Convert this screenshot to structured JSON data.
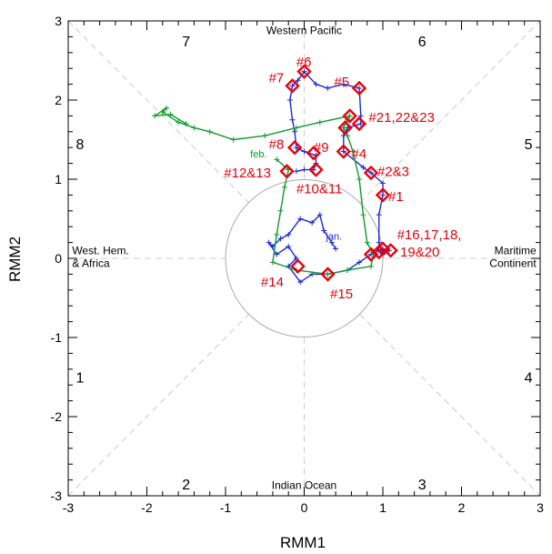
{
  "chart_data": {
    "type": "line",
    "title": "",
    "xlabel": "RMM1",
    "ylabel": "RMM2",
    "xlim": [
      -3,
      3
    ],
    "ylim": [
      -3,
      3
    ],
    "x_ticks": [
      "-3",
      "-2",
      "-1",
      "0",
      "1",
      "2",
      "3"
    ],
    "y_ticks": [
      "-3",
      "-2",
      "-1",
      "0",
      "1",
      "2",
      "3"
    ],
    "grid": false,
    "unit_circle_radius": 1,
    "colors": {
      "jan": "#1f2ad6",
      "feb": "#119a2e",
      "markers": "#e8000b",
      "guides": "#cccccc"
    },
    "phase_numbers": [
      {
        "label": "1",
        "x": -2.85,
        "y": -1.5
      },
      {
        "label": "2",
        "x": -1.5,
        "y": -2.85
      },
      {
        "label": "3",
        "x": 1.5,
        "y": -2.85
      },
      {
        "label": "4",
        "x": 2.85,
        "y": -1.5
      },
      {
        "label": "5",
        "x": 2.85,
        "y": 1.45
      },
      {
        "label": "6",
        "x": 1.5,
        "y": 2.75
      },
      {
        "label": "7",
        "x": -1.5,
        "y": 2.75
      },
      {
        "label": "8",
        "x": -2.85,
        "y": 1.45
      }
    ],
    "regions": [
      {
        "lines": [
          "Western Pacific"
        ],
        "x": 0,
        "y": 2.88,
        "anchor": "middle"
      },
      {
        "lines": [
          "Indian Ocean"
        ],
        "x": 0,
        "y": -2.87,
        "anchor": "middle"
      },
      {
        "lines": [
          "West. Hem.",
          "& Africa"
        ],
        "x": -2.95,
        "y": 0.1,
        "anchor": "start"
      },
      {
        "lines": [
          "Maritime",
          "Continent"
        ],
        "x": 2.95,
        "y": 0.1,
        "anchor": "end"
      }
    ],
    "series": [
      {
        "name": "jan",
        "points": [
          [
            0.4,
            0.12
          ],
          [
            0.35,
            0.2
          ],
          [
            0.25,
            0.35
          ],
          [
            0.2,
            0.55
          ],
          [
            0.1,
            0.45
          ],
          [
            -0.05,
            0.5
          ],
          [
            -0.2,
            0.3
          ],
          [
            -0.3,
            0.25
          ],
          [
            -0.4,
            0.15
          ],
          [
            -0.45,
            0.2
          ],
          [
            -0.35,
            0.05
          ],
          [
            -0.2,
            0.15
          ],
          [
            -0.1,
            0.0
          ],
          [
            -0.2,
            -0.1
          ],
          [
            -0.05,
            -0.3
          ],
          [
            0.1,
            -0.2
          ],
          [
            0.3,
            -0.2
          ],
          [
            0.55,
            -0.15
          ],
          [
            0.7,
            -0.05
          ],
          [
            0.85,
            0.05
          ],
          [
            0.95,
            0.1
          ],
          [
            1.0,
            0.12
          ],
          [
            1.08,
            0.1
          ],
          [
            1.0,
            0.05
          ],
          [
            0.95,
            0.2
          ],
          [
            0.95,
            0.55
          ],
          [
            1.0,
            0.8
          ],
          [
            1.0,
            0.95
          ],
          [
            0.85,
            1.08
          ],
          [
            0.75,
            1.15
          ],
          [
            0.5,
            1.35
          ],
          [
            0.5,
            1.55
          ],
          [
            0.55,
            1.65
          ],
          [
            0.72,
            1.7
          ],
          [
            0.72,
            1.8
          ],
          [
            0.7,
            2.15
          ],
          [
            0.5,
            2.2
          ],
          [
            0.3,
            2.15
          ],
          [
            0.15,
            2.2
          ],
          [
            0.0,
            2.36
          ],
          [
            -0.08,
            2.25
          ],
          [
            -0.15,
            2.18
          ],
          [
            -0.18,
            2.0
          ],
          [
            -0.15,
            1.75
          ],
          [
            -0.12,
            1.6
          ],
          [
            -0.1,
            1.4
          ],
          [
            0.0,
            1.35
          ],
          [
            0.15,
            1.3
          ],
          [
            0.15,
            1.2
          ],
          [
            0.12,
            1.12
          ],
          [
            0.0,
            1.12
          ],
          [
            -0.1,
            1.1
          ]
        ]
      },
      {
        "name": "feb",
        "points": [
          [
            -0.35,
            1.25
          ],
          [
            -0.2,
            1.12
          ],
          [
            -0.25,
            0.9
          ],
          [
            -0.3,
            0.6
          ],
          [
            -0.35,
            0.3
          ],
          [
            -0.4,
            -0.05
          ],
          [
            -0.1,
            -0.15
          ],
          [
            0.3,
            -0.2
          ],
          [
            0.55,
            -0.15
          ],
          [
            0.85,
            -0.1
          ],
          [
            0.88,
            0.05
          ],
          [
            0.8,
            0.2
          ],
          [
            0.75,
            0.55
          ],
          [
            0.7,
            1.0
          ],
          [
            0.62,
            1.35
          ],
          [
            0.55,
            1.55
          ],
          [
            0.5,
            1.65
          ],
          [
            0.55,
            1.75
          ],
          [
            0.58,
            1.8
          ],
          [
            0.2,
            1.72
          ],
          [
            -0.1,
            1.65
          ],
          [
            -0.5,
            1.55
          ],
          [
            -0.9,
            1.5
          ],
          [
            -1.2,
            1.6
          ],
          [
            -1.4,
            1.65
          ],
          [
            -1.6,
            1.72
          ],
          [
            -1.8,
            1.85
          ],
          [
            -1.75,
            1.9
          ],
          [
            -1.9,
            1.8
          ],
          [
            -1.7,
            1.82
          ],
          [
            -1.5,
            1.7
          ]
        ]
      }
    ],
    "month_labels": [
      {
        "label": "jan.",
        "series": "jan",
        "x": 0.38,
        "y": 0.28
      },
      {
        "label": "feb.",
        "series": "feb",
        "x": -0.58,
        "y": 1.32
      }
    ],
    "markers": [
      [
        1.0,
        0.8
      ],
      [
        0.85,
        1.08
      ],
      [
        0.5,
        1.35
      ],
      [
        0.7,
        2.15
      ],
      [
        0.0,
        2.36
      ],
      [
        -0.15,
        2.18
      ],
      [
        -0.12,
        1.4
      ],
      [
        0.12,
        1.33
      ],
      [
        0.15,
        1.12
      ],
      [
        -0.22,
        1.1
      ],
      [
        -0.08,
        -0.1
      ],
      [
        0.3,
        -0.2
      ],
      [
        0.52,
        1.65
      ],
      [
        0.58,
        1.8
      ],
      [
        0.7,
        1.7
      ],
      [
        0.85,
        0.05
      ],
      [
        0.95,
        0.08
      ],
      [
        1.0,
        0.12
      ],
      [
        1.1,
        0.1
      ]
    ],
    "annotations": [
      {
        "label": "#1",
        "x": 1.07,
        "y": 0.78
      },
      {
        "label": "#2&3",
        "x": 0.93,
        "y": 1.1
      },
      {
        "label": "#4",
        "x": 0.6,
        "y": 1.32
      },
      {
        "label": "#5",
        "x": 0.38,
        "y": 2.23
      },
      {
        "label": "#6",
        "x": -0.1,
        "y": 2.48
      },
      {
        "label": "#7",
        "x": -0.45,
        "y": 2.28
      },
      {
        "label": "#8",
        "x": -0.45,
        "y": 1.44
      },
      {
        "label": "#9",
        "x": 0.12,
        "y": 1.4
      },
      {
        "label": "#10&11",
        "x": -0.1,
        "y": 0.88
      },
      {
        "label": "#12&13",
        "x": -1.02,
        "y": 1.08
      },
      {
        "label": "#14",
        "x": -0.55,
        "y": -0.3
      },
      {
        "label": "#15",
        "x": 0.33,
        "y": -0.45
      },
      {
        "label": "#16,17,18,",
        "x": 1.18,
        "y": 0.3
      },
      {
        "label": "19&20",
        "x": 1.22,
        "y": 0.08
      },
      {
        "label": "#21,22&23",
        "x": 0.82,
        "y": 1.78
      }
    ]
  }
}
